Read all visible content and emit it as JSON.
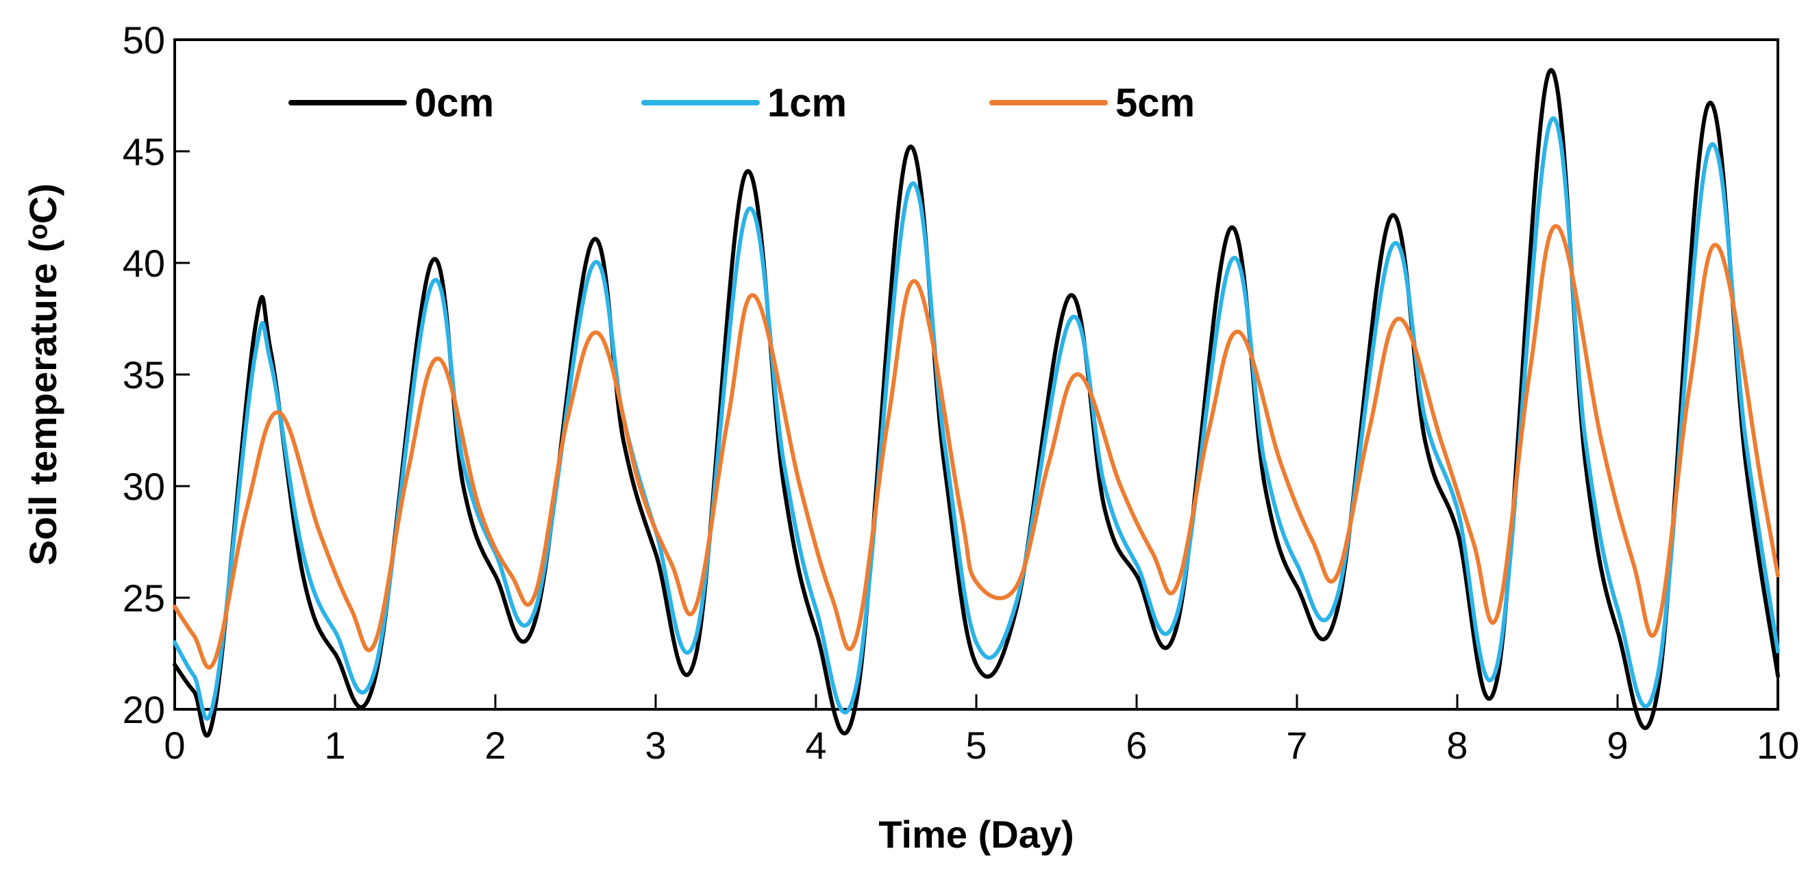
{
  "chart_data": {
    "type": "line",
    "title": "",
    "xlabel": "Time (Day)",
    "ylabel": "Soil temperature (ᵒC)",
    "xlim": [
      0,
      10
    ],
    "ylim": [
      20,
      50
    ],
    "xticks": [
      "0",
      "1",
      "2",
      "3",
      "4",
      "5",
      "6",
      "7",
      "8",
      "9",
      "10"
    ],
    "yticks": [
      "20",
      "25",
      "30",
      "35",
      "40",
      "45",
      "50"
    ],
    "grid": false,
    "legend_position": "top-left",
    "series": [
      {
        "name": "0cm",
        "color": "#000000",
        "x": [
          0,
          0.12,
          0.25,
          0.5,
          0.6,
          0.8,
          1.0,
          1.25,
          1.6,
          1.8,
          2.0,
          2.25,
          2.6,
          2.8,
          3.0,
          3.25,
          3.56,
          3.8,
          4.0,
          4.25,
          4.57,
          4.8,
          5.0,
          5.25,
          5.58,
          5.8,
          6.0,
          6.25,
          6.58,
          6.8,
          7.0,
          7.25,
          7.58,
          7.8,
          8.0,
          8.25,
          8.57,
          8.8,
          9.0,
          9.25,
          9.56,
          9.8,
          10.0
        ],
        "y": [
          22.0,
          20.8,
          20.0,
          37.0,
          36.0,
          26.0,
          22.5,
          21.4,
          40.0,
          30.0,
          26.0,
          24.0,
          40.9,
          32.0,
          27.0,
          22.4,
          44.0,
          30.0,
          23.5,
          20.3,
          45.0,
          31.0,
          22.0,
          24.5,
          38.5,
          29.0,
          26.0,
          23.7,
          41.5,
          30.0,
          25.5,
          24.4,
          42.0,
          32.0,
          28.0,
          21.4,
          48.5,
          31.0,
          23.5,
          20.8,
          47.0,
          31.0,
          21.5
        ]
      },
      {
        "name": "1cm",
        "color": "#2BB3E8",
        "x": [
          0,
          0.12,
          0.25,
          0.5,
          0.6,
          0.8,
          1.0,
          1.25,
          1.6,
          1.8,
          2.0,
          2.25,
          2.6,
          2.8,
          3.0,
          3.25,
          3.57,
          3.8,
          4.0,
          4.25,
          4.58,
          4.8,
          5.0,
          5.25,
          5.59,
          5.8,
          6.0,
          6.25,
          6.59,
          6.8,
          7.0,
          7.25,
          7.59,
          7.8,
          8.0,
          8.25,
          8.58,
          8.8,
          9.0,
          9.25,
          9.57,
          9.8,
          10.0
        ],
        "y": [
          23.0,
          21.5,
          20.6,
          35.8,
          35.5,
          27.0,
          23.5,
          21.8,
          39.0,
          31.0,
          27.0,
          24.5,
          39.8,
          33.0,
          28.0,
          23.2,
          42.3,
          31.0,
          24.5,
          21.0,
          43.3,
          32.0,
          23.0,
          24.8,
          37.5,
          30.0,
          26.5,
          24.2,
          40.1,
          31.0,
          26.5,
          25.0,
          40.7,
          33.0,
          29.0,
          22.0,
          46.3,
          32.0,
          24.5,
          21.5,
          45.1,
          32.0,
          22.6
        ]
      },
      {
        "name": "5cm",
        "color": "#ED7D31",
        "x": [
          0,
          0.12,
          0.25,
          0.45,
          0.65,
          0.9,
          1.1,
          1.25,
          1.45,
          1.65,
          1.9,
          2.1,
          2.25,
          2.45,
          2.65,
          2.9,
          3.1,
          3.25,
          3.45,
          3.62,
          3.9,
          4.1,
          4.25,
          4.45,
          4.63,
          4.9,
          5.0,
          5.25,
          5.45,
          5.64,
          5.9,
          6.1,
          6.25,
          6.45,
          6.64,
          6.9,
          7.1,
          7.25,
          7.45,
          7.64,
          7.9,
          8.1,
          8.25,
          8.45,
          8.63,
          8.9,
          9.1,
          9.25,
          9.45,
          9.63,
          9.9,
          10.0
        ],
        "y": [
          24.6,
          23.3,
          22.2,
          29.0,
          33.3,
          28.0,
          24.5,
          23.0,
          30.5,
          35.7,
          29.0,
          26.0,
          25.2,
          33.0,
          36.8,
          30.0,
          26.5,
          24.6,
          33.0,
          38.5,
          30.0,
          25.0,
          23.2,
          33.0,
          39.1,
          29.0,
          25.7,
          25.5,
          31.0,
          35.0,
          30.0,
          27.0,
          25.5,
          32.5,
          36.9,
          31.0,
          27.5,
          26.0,
          32.5,
          37.5,
          32.0,
          27.5,
          24.2,
          35.0,
          41.6,
          32.0,
          26.5,
          23.7,
          34.5,
          40.7,
          30.0,
          26.0
        ]
      }
    ]
  }
}
